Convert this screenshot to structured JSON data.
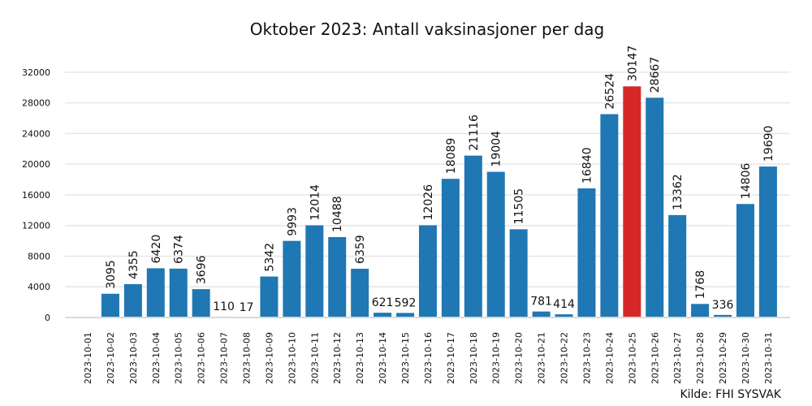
{
  "chart_data": {
    "type": "bar",
    "title": "Oktober 2023: Antall vaksinasjoner per dag",
    "source": "Kilde: FHI SYSVAK",
    "xlabel": "",
    "ylabel": "",
    "ylim": [
      0,
      34000
    ],
    "yticks": [
      "0",
      "4000",
      "8000",
      "12000",
      "16000",
      "20000",
      "24000",
      "28000",
      "32000"
    ],
    "grid": true,
    "bar_color": "#1f77b4",
    "highlight_color": "#d62728",
    "highlight_index": 24,
    "categories": [
      "2023-10-01",
      "2023-10-02",
      "2023-10-03",
      "2023-10-04",
      "2023-10-05",
      "2023-10-06",
      "2023-10-07",
      "2023-10-08",
      "2023-10-09",
      "2023-10-10",
      "2023-10-11",
      "2023-10-12",
      "2023-10-13",
      "2023-10-14",
      "2023-10-15",
      "2023-10-16",
      "2023-10-17",
      "2023-10-18",
      "2023-10-19",
      "2023-10-20",
      "2023-10-21",
      "2023-10-22",
      "2023-10-23",
      "2023-10-24",
      "2023-10-25",
      "2023-10-26",
      "2023-10-27",
      "2023-10-28",
      "2023-10-29",
      "2023-10-30",
      "2023-10-31"
    ],
    "values": [
      0,
      3095,
      4355,
      6420,
      6374,
      3696,
      110,
      17,
      5342,
      9993,
      12014,
      10488,
      6359,
      621,
      592,
      12026,
      18089,
      21116,
      19004,
      11505,
      781,
      414,
      16840,
      26524,
      30147,
      28667,
      13362,
      1768,
      336,
      14806,
      19690
    ],
    "labels": [
      "",
      "3095",
      "4355",
      "6420",
      "6374",
      "3696",
      "110",
      "17",
      "5342",
      "9993",
      "12014",
      "10488",
      "6359",
      "621",
      "592",
      "12026",
      "18089",
      "21116",
      "19004",
      "11505",
      "781",
      "414",
      "16840",
      "26524",
      "30147",
      "28667",
      "13362",
      "1768",
      "336",
      "14806",
      "19690"
    ]
  }
}
